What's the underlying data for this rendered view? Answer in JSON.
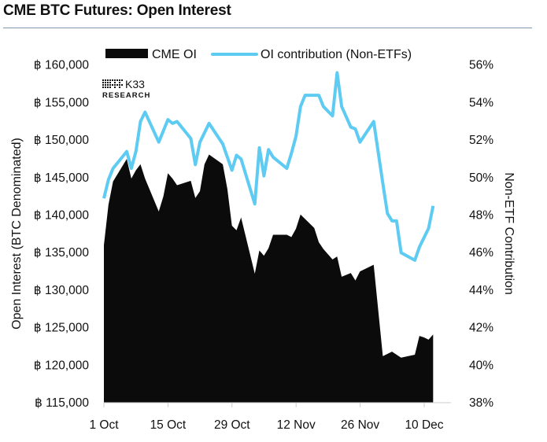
{
  "title": "CME BTC Futures: Open Interest",
  "logo": {
    "brand": "K33",
    "sub": "RESEARCH"
  },
  "colors": {
    "area": "#0b0b0c",
    "line": "#5ecbf2",
    "rule": "#7f97ad"
  },
  "chart_data": {
    "type": "area+line",
    "title": "CME BTC Futures: Open Interest",
    "ylabel": "Open Interest (BTC Denominated)",
    "y2label": "Non-ETF Contribution",
    "ylim": [
      115000,
      160000
    ],
    "y2lim": [
      38,
      56
    ],
    "xlim": [
      "Oct 1",
      "Dec 12"
    ],
    "yticks": [
      "฿ 115,000",
      "฿ 120,000",
      "฿ 125,000",
      "฿ 130,000",
      "฿ 135,000",
      "฿ 140,000",
      "฿ 145,000",
      "฿ 150,000",
      "฿ 155,000",
      "฿ 160,000"
    ],
    "y2ticks": [
      "38%",
      "40%",
      "42%",
      "44%",
      "46%",
      "48%",
      "50%",
      "52%",
      "54%",
      "56%"
    ],
    "xticks": [
      "1 Oct",
      "15 Oct",
      "29 Oct",
      "12 Nov",
      "26 Nov",
      "10 Dec"
    ],
    "legend_position": "top",
    "grid": false,
    "series": [
      {
        "name": "CME OI",
        "type": "area",
        "axis": "left",
        "x": [
          "Oct 1",
          "Oct 2",
          "Oct 3",
          "Oct 6",
          "Oct 7",
          "Oct 8",
          "Oct 9",
          "Oct 10",
          "Oct 13",
          "Oct 14",
          "Oct 15",
          "Oct 16",
          "Oct 17",
          "Oct 20",
          "Oct 21",
          "Oct 22",
          "Oct 23",
          "Oct 24",
          "Oct 27",
          "Oct 28",
          "Oct 29",
          "Oct 30",
          "Oct 31",
          "Nov 3",
          "Nov 4",
          "Nov 5",
          "Nov 6",
          "Nov 7",
          "Nov 10",
          "Nov 11",
          "Nov 12",
          "Nov 13",
          "Nov 16",
          "Nov 17",
          "Nov 18",
          "Nov 20",
          "Nov 21",
          "Nov 22",
          "Nov 24",
          "Nov 25",
          "Nov 26",
          "Nov 29",
          "Dec 1",
          "Dec 2",
          "Dec 3",
          "Dec 5",
          "Dec 8",
          "Dec 9",
          "Dec 10",
          "Dec 11",
          "Dec 12"
        ],
        "values": [
          136000,
          141400,
          144500,
          147500,
          144900,
          146000,
          146800,
          144900,
          140500,
          142500,
          145600,
          144900,
          144000,
          144600,
          142300,
          143200,
          146800,
          148100,
          146800,
          143500,
          138600,
          138000,
          139700,
          132200,
          135300,
          134600,
          135600,
          137400,
          137400,
          137100,
          138200,
          140100,
          138300,
          136400,
          135500,
          134100,
          134500,
          131800,
          132300,
          131300,
          132500,
          133400,
          121200,
          121500,
          121800,
          121000,
          121400,
          123900,
          123700,
          123400,
          124100
        ]
      },
      {
        "name": "OI contribution (Non-ETFs)",
        "type": "line",
        "axis": "right",
        "x": [
          "Oct 1",
          "Oct 2",
          "Oct 3",
          "Oct 6",
          "Oct 7",
          "Oct 8",
          "Oct 9",
          "Oct 10",
          "Oct 13",
          "Oct 15",
          "Oct 16",
          "Oct 17",
          "Oct 20",
          "Oct 21",
          "Oct 22",
          "Oct 24",
          "Oct 27",
          "Oct 29",
          "Oct 30",
          "Oct 31",
          "Nov 3",
          "Nov 4",
          "Nov 5",
          "Nov 6",
          "Nov 7",
          "Nov 10",
          "Nov 11",
          "Nov 12",
          "Nov 13",
          "Nov 14",
          "Nov 17",
          "Nov 18",
          "Nov 20",
          "Nov 21",
          "Nov 22",
          "Nov 24",
          "Nov 25",
          "Nov 26",
          "Nov 29",
          "Dec 1",
          "Dec 2",
          "Dec 3",
          "Dec 4",
          "Dec 5",
          "Dec 8",
          "Dec 9",
          "Dec 10",
          "Dec 11",
          "Dec 12"
        ],
        "values": [
          48.9,
          49.9,
          50.5,
          51.4,
          50.5,
          51.4,
          53.0,
          53.5,
          51.9,
          53.1,
          52.9,
          53.0,
          52.1,
          50.7,
          51.9,
          52.9,
          51.8,
          50.4,
          51.2,
          51.0,
          48.6,
          51.6,
          50.1,
          51.5,
          51.1,
          50.5,
          51.3,
          52.2,
          53.8,
          54.4,
          54.4,
          53.8,
          53.3,
          55.6,
          53.8,
          52.7,
          52.6,
          51.9,
          53.0,
          49.7,
          48.1,
          47.7,
          47.7,
          46.0,
          45.6,
          46.3,
          46.8,
          47.3,
          48.5
        ]
      }
    ]
  }
}
